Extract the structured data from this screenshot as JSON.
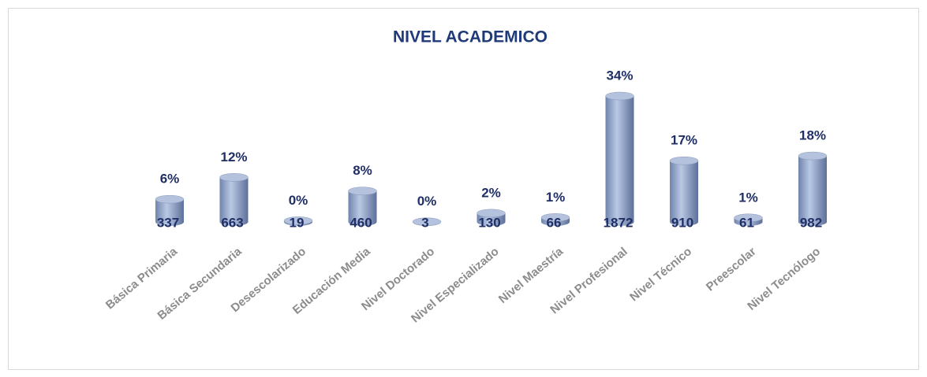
{
  "chart_data": {
    "type": "cylinder_bar",
    "title": "NIVEL ACADEMICO",
    "categories": [
      "Básica Primaria",
      "Básica Secundaria",
      "Desescolarizado",
      "Educación Media",
      "Nivel Doctorado",
      "Nivel Especializado",
      "Nivel Maestría",
      "Nivel Profesional",
      "Nivel Técnico",
      "Preescolar",
      "Nivel Tecnólogo"
    ],
    "values": [
      337,
      663,
      19,
      460,
      3,
      130,
      66,
      1872,
      910,
      61,
      982
    ],
    "percent_labels": [
      "6%",
      "12%",
      "0%",
      "8%",
      "0%",
      "2%",
      "1%",
      "34%",
      "17%",
      "1%",
      "18%"
    ],
    "color": "#8fa3c8"
  }
}
